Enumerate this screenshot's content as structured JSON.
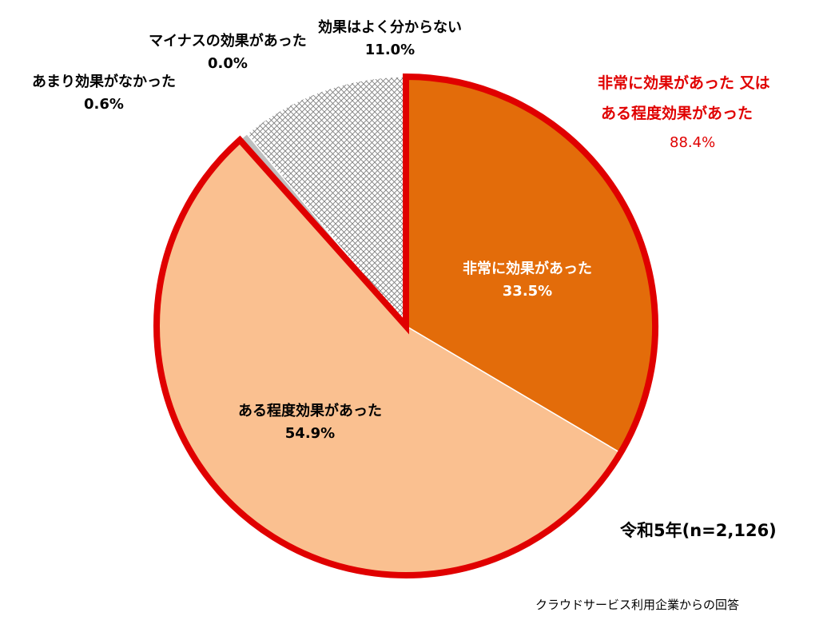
{
  "chart_data": {
    "type": "pie",
    "slices": [
      {
        "label": "非常に効果があった",
        "value": 33.5,
        "value_label": "33.5%",
        "color": "#e36c0a",
        "text_color": "#ffffff",
        "pattern": "solid"
      },
      {
        "label": "ある程度効果があった",
        "value": 54.9,
        "value_label": "54.9%",
        "color": "#fac090",
        "text_color": "#000000",
        "pattern": "solid"
      },
      {
        "label": "あまり効果がなかった",
        "value": 0.6,
        "value_label": "0.6%",
        "color": "#bfbfbf",
        "text_color": "#000000",
        "pattern": "solid"
      },
      {
        "label": "マイナスの効果があった",
        "value": 0.0,
        "value_label": "0.0%",
        "color": "#ffffff",
        "text_color": "#000000",
        "pattern": "solid"
      },
      {
        "label": "効果はよく分からない",
        "value": 11.0,
        "value_label": "11.0%",
        "color": "#ffffff",
        "text_color": "#000000",
        "pattern": "crosshatch"
      }
    ],
    "highlight": {
      "line1": "非常に効果があった 又は",
      "line2": "ある程度効果があった",
      "value_label": "88.4%",
      "color": "#e00000"
    },
    "sample_label": "令和5年(n=2,126)",
    "source_note": "クラウドサービス利用企業からの回答"
  }
}
